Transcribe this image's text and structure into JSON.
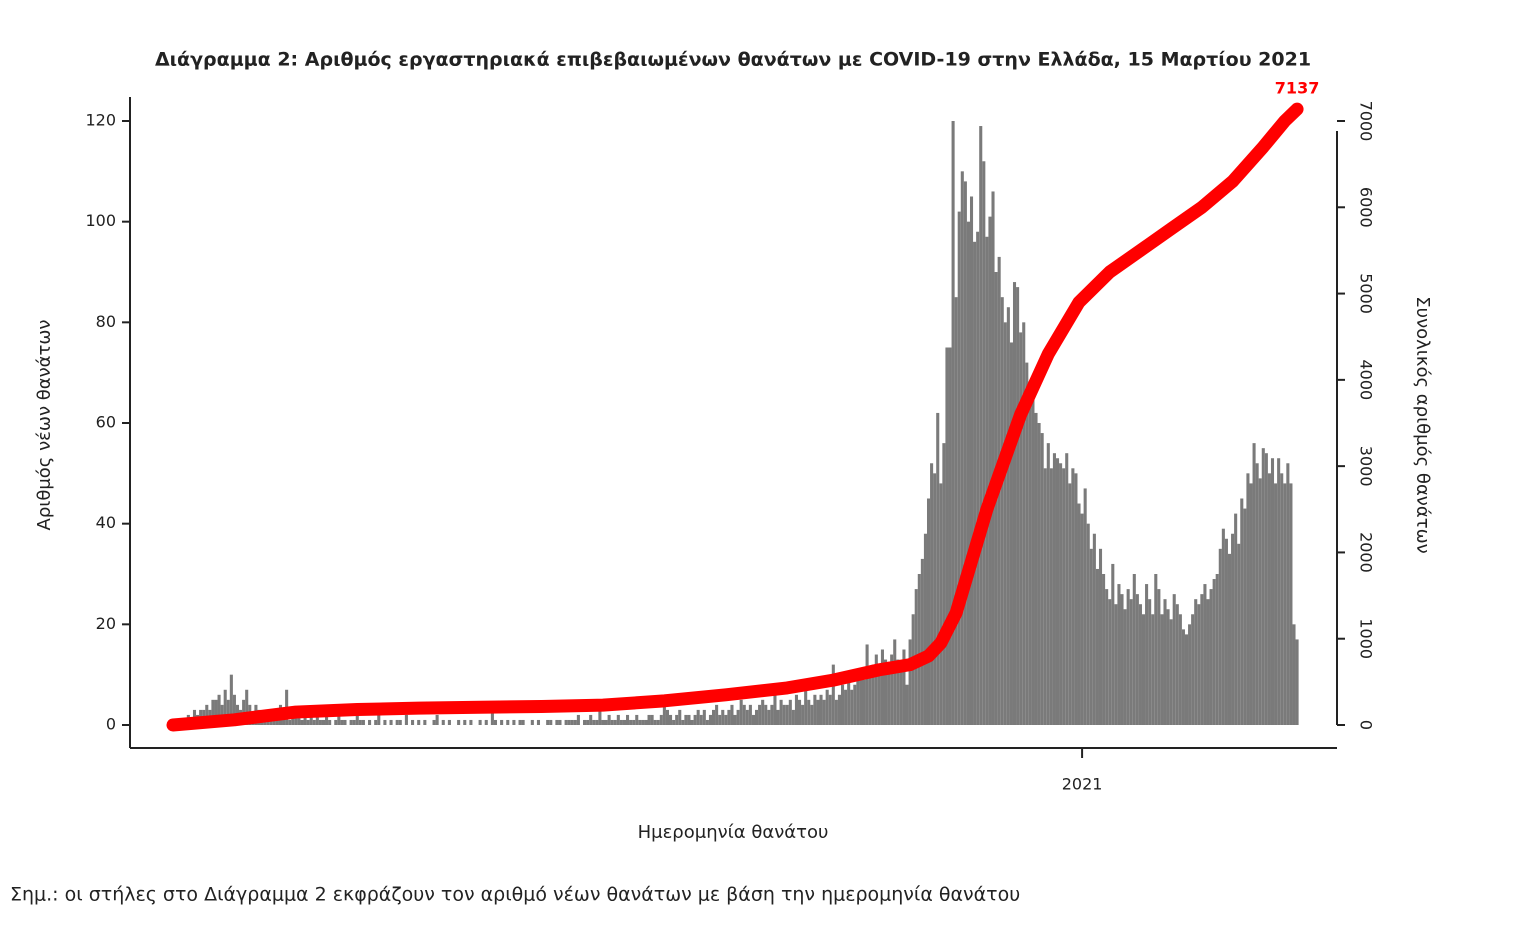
{
  "chart_data": {
    "type": "bar",
    "title": "Διάγραμμα 2: Αριθμός εργαστηριακά επιβεβαιωμένων θανάτων με COVID-19 στην Ελλάδα, 15 Μαρτίου 2021",
    "x_label": "Ημερομηνία θανάτου",
    "y_label": "Αριθμός νέων θανάτων",
    "y2_label": "Συνολικός αριθμός θανάτων",
    "note": "Σημ.: οι στήλες στο Διάγραμμα 2 εκφράζουν τον αριθμό νέων θανάτων με βάση την ημερομηνία θανάτου",
    "xlim": [
      -14,
      379
    ],
    "xticks": [
      {
        "value": 296,
        "label": "2021"
      }
    ],
    "ylim": [
      0,
      120
    ],
    "yticks": [
      0,
      20,
      40,
      60,
      80,
      100,
      120
    ],
    "y2lim": [
      0,
      7000
    ],
    "y2ticks": [
      0,
      1000,
      2000,
      3000,
      4000,
      5000,
      6000,
      7000
    ],
    "series": [
      {
        "type": "bar",
        "color": "#7a7a7a",
        "values": [
          0,
          1,
          1,
          1,
          1,
          2,
          1,
          3,
          2,
          3,
          3,
          4,
          3,
          5,
          5,
          6,
          4,
          7,
          5,
          10,
          6,
          4,
          3,
          5,
          7,
          4,
          2,
          4,
          3,
          2,
          1,
          3,
          2,
          2,
          1,
          4,
          2,
          7,
          1,
          3,
          2,
          2,
          1,
          2,
          1,
          3,
          1,
          2,
          1,
          1,
          2,
          1,
          0,
          1,
          2,
          1,
          1,
          0,
          1,
          1,
          2,
          1,
          1,
          0,
          1,
          0,
          1,
          2,
          0,
          1,
          0,
          1,
          0,
          1,
          1,
          0,
          2,
          0,
          1,
          0,
          1,
          0,
          1,
          0,
          0,
          1,
          2,
          0,
          1,
          0,
          1,
          0,
          0,
          1,
          0,
          1,
          0,
          1,
          0,
          0,
          1,
          0,
          1,
          0,
          3,
          1,
          0,
          1,
          0,
          1,
          0,
          1,
          0,
          1,
          1,
          0,
          0,
          1,
          0,
          1,
          0,
          0,
          1,
          1,
          0,
          1,
          1,
          0,
          1,
          1,
          1,
          1,
          2,
          0,
          1,
          1,
          2,
          1,
          1,
          4,
          1,
          1,
          2,
          1,
          1,
          2,
          1,
          1,
          2,
          1,
          1,
          2,
          1,
          1,
          1,
          2,
          2,
          1,
          1,
          2,
          6,
          3,
          2,
          1,
          2,
          3,
          1,
          2,
          2,
          1,
          2,
          3,
          2,
          3,
          1,
          2,
          3,
          4,
          2,
          3,
          2,
          3,
          4,
          2,
          3,
          5,
          4,
          3,
          4,
          2,
          3,
          4,
          5,
          4,
          3,
          4,
          6,
          3,
          5,
          4,
          4,
          5,
          3,
          6,
          5,
          4,
          7,
          5,
          4,
          6,
          5,
          6,
          5,
          7,
          6,
          12,
          5,
          6,
          8,
          7,
          9,
          7,
          8,
          10,
          11,
          9,
          16,
          10,
          12,
          14,
          11,
          15,
          13,
          12,
          14,
          17,
          13,
          11,
          15,
          8,
          17,
          22,
          27,
          30,
          33,
          38,
          45,
          52,
          50,
          62,
          48,
          56,
          75,
          75,
          120,
          85,
          102,
          110,
          108,
          100,
          105,
          96,
          98,
          119,
          112,
          97,
          101,
          106,
          90,
          93,
          85,
          80,
          83,
          76,
          88,
          87,
          78,
          80,
          72,
          66,
          65,
          62,
          60,
          58,
          51,
          56,
          51,
          54,
          53,
          52,
          51,
          54,
          48,
          51,
          50,
          44,
          42,
          47,
          40,
          35,
          38,
          31,
          35,
          30,
          27,
          25,
          32,
          24,
          28,
          26,
          23,
          27,
          25,
          30,
          26,
          24,
          22,
          28,
          25,
          22,
          30,
          27,
          22,
          25,
          23,
          21,
          26,
          24,
          22,
          19,
          18,
          20,
          22,
          25,
          24,
          26,
          28,
          25,
          27,
          29,
          30,
          35,
          39,
          37,
          34,
          38,
          42,
          36,
          45,
          43,
          50,
          48,
          56,
          52,
          49,
          55,
          54,
          50,
          53,
          48,
          53,
          50,
          48,
          52,
          48,
          20,
          17
        ]
      },
      {
        "type": "line",
        "axis": "y2",
        "color": "#ff0000",
        "x": [
          0,
          20,
          40,
          60,
          80,
          100,
          120,
          140,
          160,
          180,
          200,
          215,
          230,
          240,
          246,
          250,
          255,
          260,
          265,
          270,
          276,
          285,
          295,
          305,
          315,
          325,
          335,
          345,
          355,
          362,
          366
        ],
        "values": [
          0,
          60,
          150,
          180,
          195,
          205,
          215,
          230,
          280,
          350,
          430,
          520,
          640,
          700,
          800,
          950,
          1300,
          1900,
          2500,
          3000,
          3600,
          4300,
          4900,
          5250,
          5500,
          5750,
          6000,
          6300,
          6700,
          7000,
          7137
        ]
      }
    ]
  }
}
